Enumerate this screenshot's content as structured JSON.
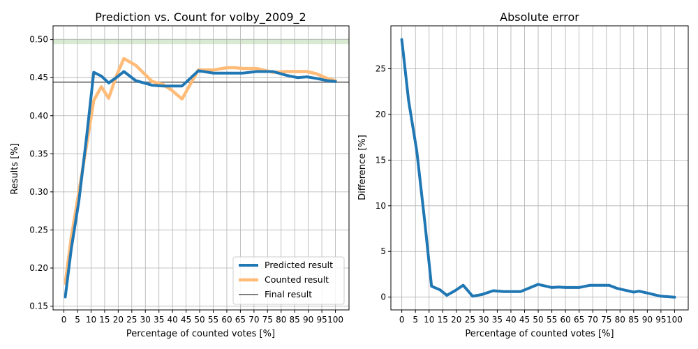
{
  "chart_data": [
    {
      "type": "line",
      "title": "Prediction vs. Count for volby_2009_2",
      "xlabel": "Percentage of counted votes [%]",
      "ylabel": "Results [%]",
      "xlim": [
        -4,
        105
      ],
      "ylim": [
        0.145,
        0.518
      ],
      "x_ticks": [
        0,
        5,
        10,
        15,
        20,
        25,
        30,
        35,
        40,
        45,
        50,
        55,
        60,
        65,
        70,
        75,
        80,
        85,
        90,
        95,
        100
      ],
      "y_ticks": [
        0.15,
        0.2,
        0.25,
        0.3,
        0.35,
        0.4,
        0.45,
        0.5
      ],
      "y_tick_labels": [
        "0.15",
        "0.20",
        "0.25",
        "0.30",
        "0.35",
        "0.40",
        "0.45",
        "0.50"
      ],
      "grid": true,
      "legend_position": "lower-right",
      "x": [
        0.5,
        2.7,
        5.5,
        8.3,
        11,
        13.8,
        16.5,
        19.3,
        22.1,
        26.5,
        32.5,
        36.5,
        39.5,
        43.5,
        49.5,
        55,
        60,
        63,
        66,
        71,
        77,
        82,
        86,
        89.5,
        93,
        97,
        100
      ],
      "series": [
        {
          "name": "Predicted result",
          "color": "#1f77b4",
          "values": [
            0.162,
            0.225,
            0.288,
            0.37,
            0.457,
            0.452,
            0.443,
            0.45,
            0.458,
            0.446,
            0.44,
            0.439,
            0.439,
            0.439,
            0.459,
            0.456,
            0.456,
            0.456,
            0.456,
            0.458,
            0.458,
            0.453,
            0.45,
            0.451,
            0.449,
            0.446,
            0.445
          ]
        },
        {
          "name": "Counted result",
          "color": "#ffbb78",
          "values": [
            0.18,
            0.24,
            0.3,
            0.36,
            0.42,
            0.438,
            0.423,
            0.452,
            0.475,
            0.466,
            0.445,
            0.441,
            0.434,
            0.422,
            0.46,
            0.46,
            0.463,
            0.463,
            0.462,
            0.462,
            0.457,
            0.458,
            0.458,
            0.458,
            0.455,
            0.449,
            0.446
          ]
        }
      ],
      "final_result": {
        "name": "Final result",
        "value": 0.444,
        "color": "#808080"
      },
      "highlight_band": {
        "y_from": 0.494,
        "y_to": 0.501,
        "color": "#d8ead2"
      }
    },
    {
      "type": "line",
      "title": "Absolute error",
      "xlabel": "Percentage of counted votes [%]",
      "ylabel": "Difference [%]",
      "xlim": [
        -4,
        105
      ],
      "ylim": [
        -1.4,
        29.7
      ],
      "x_ticks": [
        0,
        5,
        10,
        15,
        20,
        25,
        30,
        35,
        40,
        45,
        50,
        55,
        60,
        65,
        70,
        75,
        80,
        85,
        90,
        95,
        100
      ],
      "y_ticks": [
        0,
        5,
        10,
        15,
        20,
        25
      ],
      "y_tick_labels": [
        "0",
        "5",
        "10",
        "15",
        "20",
        "25"
      ],
      "grid": true,
      "x": [
        0,
        2.5,
        5.5,
        8.5,
        10.9,
        14,
        16.5,
        19.5,
        22.5,
        26,
        29.5,
        33.5,
        37.5,
        43.5,
        50,
        55,
        57.5,
        60,
        65,
        69,
        72,
        76,
        79,
        85,
        87,
        90,
        95,
        100
      ],
      "series": [
        {
          "name": "",
          "color": "#1f77b4",
          "values": [
            28.2,
            21.5,
            16,
            8,
            1.2,
            0.8,
            0.2,
            0.7,
            1.3,
            0.1,
            0.3,
            0.7,
            0.6,
            0.6,
            1.4,
            1.05,
            1.1,
            1.05,
            1.05,
            1.3,
            1.3,
            1.3,
            0.95,
            0.55,
            0.65,
            0.45,
            0.1,
            0.0
          ]
        }
      ]
    }
  ]
}
